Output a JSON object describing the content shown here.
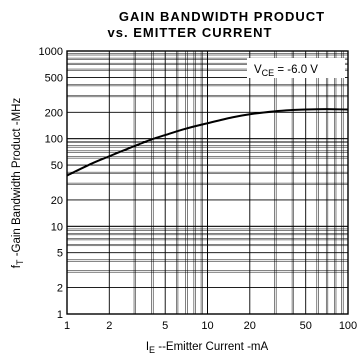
{
  "chart_data": {
    "type": "line",
    "title": "GAIN BANDWIDTH PRODUCT",
    "subtitle": "vs. EMITTER CURRENT",
    "xlabel": {
      "main": "I",
      "sub": "E",
      "rest": " --Emitter Current -mA"
    },
    "ylabel": {
      "main": "f",
      "sub": "T",
      "rest": " -Gain Bandwidth Product -MHz"
    },
    "xscale": "log",
    "yscale": "log",
    "xlim": [
      1,
      100
    ],
    "ylim": [
      1,
      1000
    ],
    "xticks": [
      1,
      2,
      5,
      10,
      20,
      50,
      100
    ],
    "xtick_labels": [
      "1",
      "2",
      "5",
      "10",
      "20",
      "50",
      "100"
    ],
    "yticks": [
      1,
      2,
      5,
      10,
      20,
      50,
      100,
      200,
      500,
      1000
    ],
    "ytick_labels": [
      "1",
      "2",
      "5",
      "10",
      "20",
      "50",
      "100",
      "200",
      "500",
      "1000"
    ],
    "grid": true,
    "annotation": {
      "main": "V",
      "sub": "CE",
      "rest": " = -6.0 V"
    },
    "series": [
      {
        "x": [
          1,
          1.5,
          2,
          3,
          4,
          5,
          7,
          10,
          15,
          20,
          30,
          40,
          50,
          70,
          100
        ],
        "y": [
          38,
          52,
          63,
          82,
          98,
          110,
          130,
          150,
          175,
          190,
          205,
          212,
          215,
          217,
          215
        ]
      }
    ]
  }
}
